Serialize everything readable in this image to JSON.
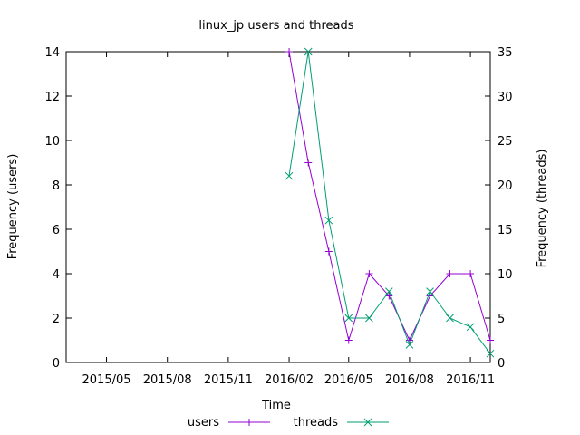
{
  "chart_data": {
    "type": "line",
    "title": "linux_jp users and threads",
    "xlabel": "Time",
    "ylabel": "Frequency (users)",
    "y2label": "Frequency (threads)",
    "x_ticks": [
      "2015/05",
      "2015/08",
      "2015/11",
      "2016/02",
      "2016/05",
      "2016/08",
      "2016/11"
    ],
    "y_ticks": [
      "0",
      "2",
      "4",
      "6",
      "8",
      "10",
      "12",
      "14"
    ],
    "y2_ticks": [
      "0",
      "5",
      "10",
      "15",
      "20",
      "25",
      "30",
      "35"
    ],
    "ylim": [
      0,
      14
    ],
    "y2lim": [
      0,
      35
    ],
    "xlim": [
      "2015-03-01",
      "2016-12-01"
    ],
    "grid": false,
    "legend_position": "bottom",
    "series": [
      {
        "name": "users",
        "axis": "left",
        "color": "#9400d3",
        "marker": "plus",
        "x": [
          "2016-02-01",
          "2016-03-01",
          "2016-04-01",
          "2016-05-01",
          "2016-06-01",
          "2016-07-01",
          "2016-08-01",
          "2016-09-01",
          "2016-10-01",
          "2016-11-01",
          "2016-12-01"
        ],
        "values": [
          14,
          9,
          5,
          1,
          4,
          3,
          1,
          3,
          4,
          4,
          1
        ]
      },
      {
        "name": "threads",
        "axis": "right",
        "color": "#009e73",
        "marker": "x",
        "x": [
          "2016-02-01",
          "2016-03-01",
          "2016-04-01",
          "2016-05-01",
          "2016-06-01",
          "2016-07-01",
          "2016-08-01",
          "2016-09-01",
          "2016-10-01",
          "2016-11-01",
          "2016-12-01"
        ],
        "values": [
          21,
          35,
          16,
          5,
          5,
          8,
          2,
          8,
          5,
          4,
          1
        ]
      }
    ]
  }
}
